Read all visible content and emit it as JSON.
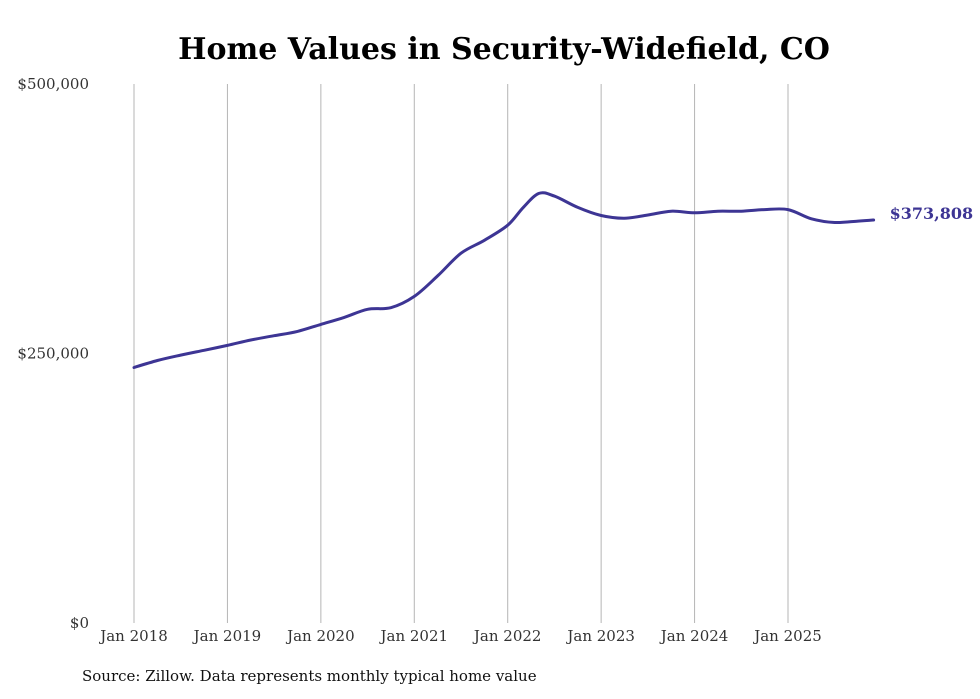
{
  "colors": {
    "line": "#3d3594",
    "grid": "#b5b5b5",
    "text": "#333333"
  },
  "chart_data": {
    "type": "line",
    "title": "Home Values in Security-Widefield, CO",
    "xlabel": "",
    "ylabel": "",
    "ylim": [
      0,
      500000
    ],
    "y_ticks": [
      0,
      250000,
      500000
    ],
    "y_tick_labels": [
      "$0",
      "$250,000",
      "$500,000"
    ],
    "x_range": [
      "2018-01",
      "2025-12"
    ],
    "x_ticks": [
      "2018-01",
      "2019-01",
      "2020-01",
      "2021-01",
      "2022-01",
      "2023-01",
      "2024-01",
      "2025-01"
    ],
    "x_tick_labels": [
      "Jan 2018",
      "Jan 2019",
      "Jan 2020",
      "Jan 2021",
      "Jan 2022",
      "Jan 2023",
      "Jan 2024",
      "Jan 2025"
    ],
    "grid": "vertical",
    "legend": "none",
    "end_label": "$373,808",
    "series": [
      {
        "x": [
          "2018-01",
          "2018-04",
          "2018-07",
          "2018-10",
          "2019-01",
          "2019-04",
          "2019-07",
          "2019-10",
          "2020-01",
          "2020-04",
          "2020-07",
          "2020-10",
          "2021-01",
          "2021-04",
          "2021-07",
          "2021-10",
          "2022-01",
          "2022-03",
          "2022-05",
          "2022-07",
          "2022-10",
          "2023-01",
          "2023-04",
          "2023-07",
          "2023-10",
          "2024-01",
          "2024-04",
          "2024-07",
          "2024-10",
          "2025-01",
          "2025-04",
          "2025-07",
          "2025-10",
          "2025-12"
        ],
        "values": [
          237000,
          243500,
          248500,
          253000,
          257500,
          262500,
          266500,
          270500,
          277000,
          283500,
          291000,
          292500,
          303000,
          322000,
          343000,
          355000,
          369000,
          385500,
          398500,
          396000,
          385500,
          378000,
          375500,
          378500,
          382000,
          380500,
          382000,
          382000,
          383500,
          383500,
          375000,
          371500,
          372800,
          373808
        ]
      }
    ]
  },
  "footer": {
    "source": "Source: Zillow. Data represents monthly typical home value"
  }
}
